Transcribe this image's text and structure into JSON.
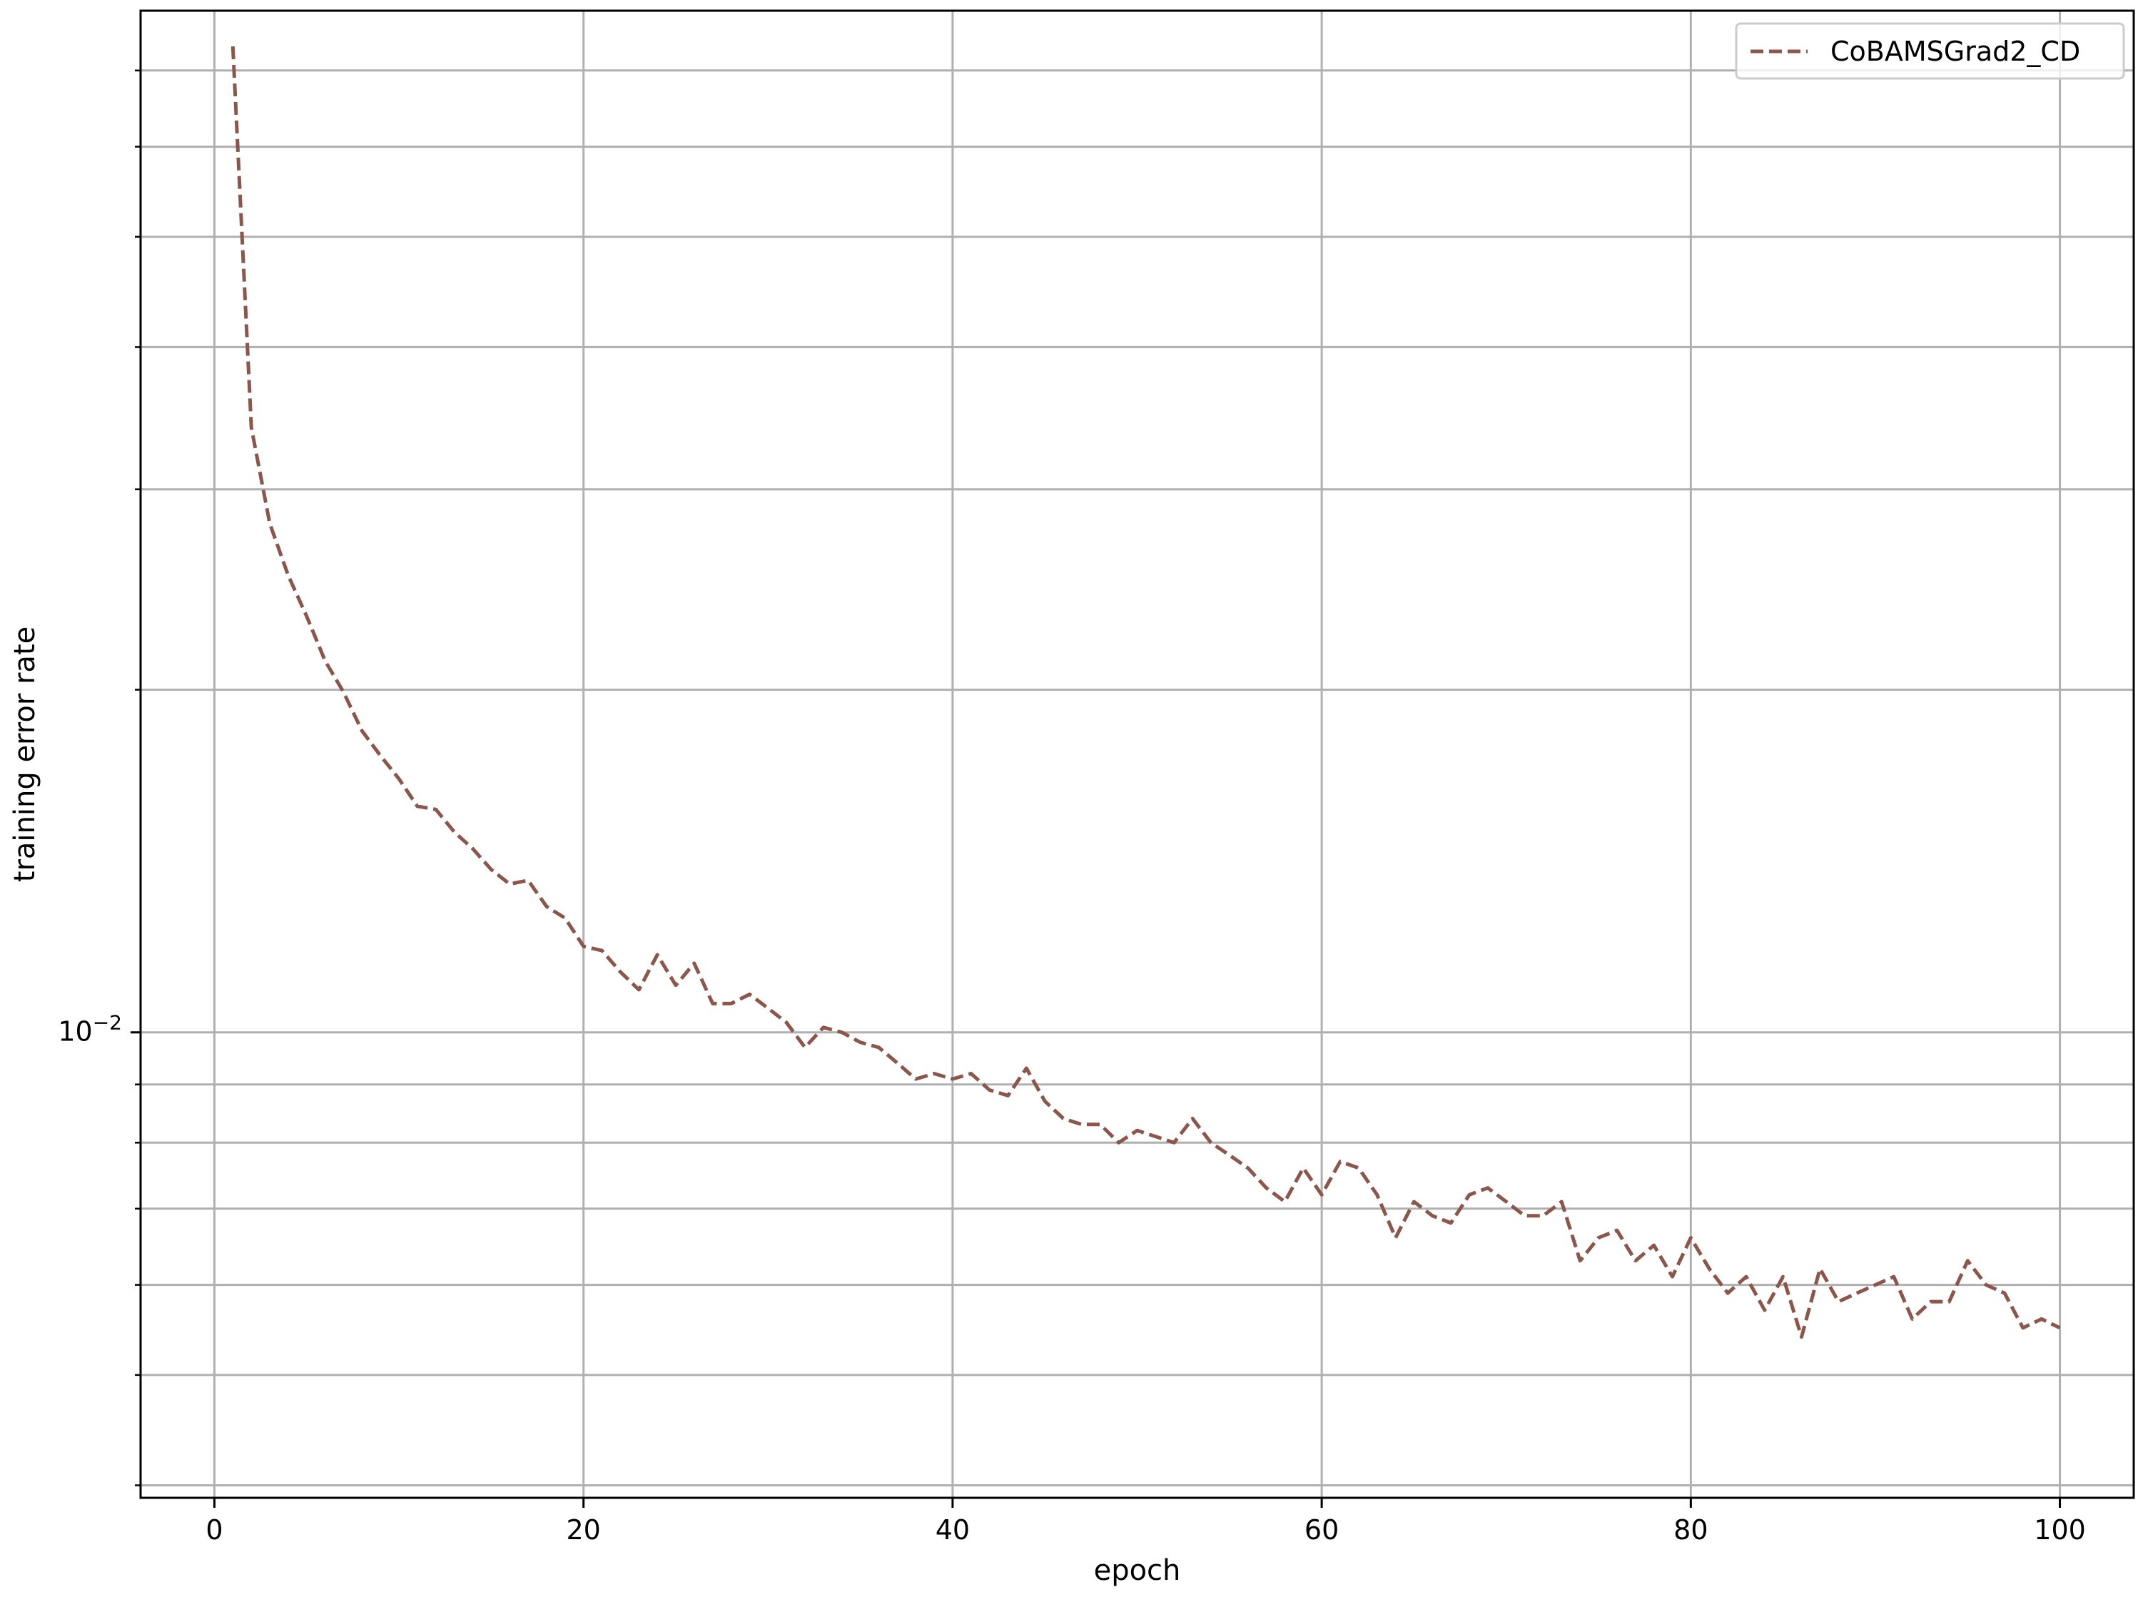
{
  "chart_data": {
    "type": "line",
    "title": "",
    "xlabel": "epoch",
    "ylabel": "training error rate",
    "xlim": [
      -4,
      104
    ],
    "ylim": [
      0.0039,
      0.079
    ],
    "yscale": "log",
    "xticks": [
      0,
      20,
      40,
      60,
      80,
      100
    ],
    "xtick_labels": [
      "0",
      "20",
      "40",
      "60",
      "80",
      "100"
    ],
    "yticks_major": [
      0.01
    ],
    "ytick_major_labels": [
      "10",
      "−2"
    ],
    "yticks_minor": [
      0.004,
      0.005,
      0.006,
      0.007,
      0.008,
      0.009,
      0.02,
      0.03,
      0.04,
      0.05,
      0.06,
      0.07
    ],
    "grid": true,
    "legend_position": "top-right",
    "series": [
      {
        "name": "CoBAMSGrad2_CD",
        "color": "#8c564b",
        "linestyle": "dashed",
        "x": [
          1,
          2,
          3,
          4,
          5,
          6,
          7,
          8,
          9,
          10,
          11,
          12,
          13,
          14,
          15,
          16,
          17,
          18,
          19,
          20,
          21,
          22,
          23,
          24,
          25,
          26,
          27,
          28,
          29,
          30,
          31,
          32,
          33,
          34,
          35,
          36,
          37,
          38,
          39,
          40,
          41,
          42,
          43,
          44,
          45,
          46,
          47,
          48,
          49,
          50,
          51,
          52,
          53,
          54,
          55,
          56,
          57,
          58,
          59,
          60,
          61,
          62,
          63,
          64,
          65,
          66,
          67,
          68,
          69,
          70,
          71,
          72,
          73,
          74,
          75,
          76,
          77,
          78,
          79,
          80,
          81,
          82,
          83,
          84,
          85,
          86,
          87,
          88,
          89,
          90,
          91,
          92,
          93,
          94,
          95,
          96,
          97,
          98,
          99,
          100
        ],
        "y": [
          0.0735,
          0.034,
          0.028,
          0.0252,
          0.0232,
          0.0212,
          0.0199,
          0.0184,
          0.0175,
          0.0167,
          0.0158,
          0.0157,
          0.015,
          0.0145,
          0.0139,
          0.0135,
          0.0136,
          0.0129,
          0.0126,
          0.0119,
          0.0118,
          0.0113,
          0.0109,
          0.0117,
          0.011,
          0.0115,
          0.0106,
          0.0106,
          0.0108,
          0.0105,
          0.0102,
          0.0097,
          0.0101,
          0.01,
          0.0098,
          0.0097,
          0.0094,
          0.0091,
          0.0092,
          0.0091,
          0.0092,
          0.0089,
          0.0088,
          0.0093,
          0.0087,
          0.0084,
          0.0083,
          0.0083,
          0.008,
          0.0082,
          0.0081,
          0.008,
          0.0084,
          0.008,
          0.0078,
          0.0076,
          0.0073,
          0.0071,
          0.0076,
          0.0072,
          0.0077,
          0.0076,
          0.0072,
          0.0066,
          0.0071,
          0.0069,
          0.0068,
          0.0072,
          0.0073,
          0.0071,
          0.0069,
          0.0069,
          0.0071,
          0.0063,
          0.0066,
          0.0067,
          0.0063,
          0.0065,
          0.0061,
          0.0066,
          0.0062,
          0.0059,
          0.0061,
          0.0057,
          0.0061,
          0.0054,
          0.0062,
          0.0058,
          0.0059,
          0.006,
          0.0061,
          0.0056,
          0.0058,
          0.0058,
          0.0063,
          0.006,
          0.0059,
          0.0055,
          0.0056,
          0.0055
        ]
      }
    ]
  }
}
